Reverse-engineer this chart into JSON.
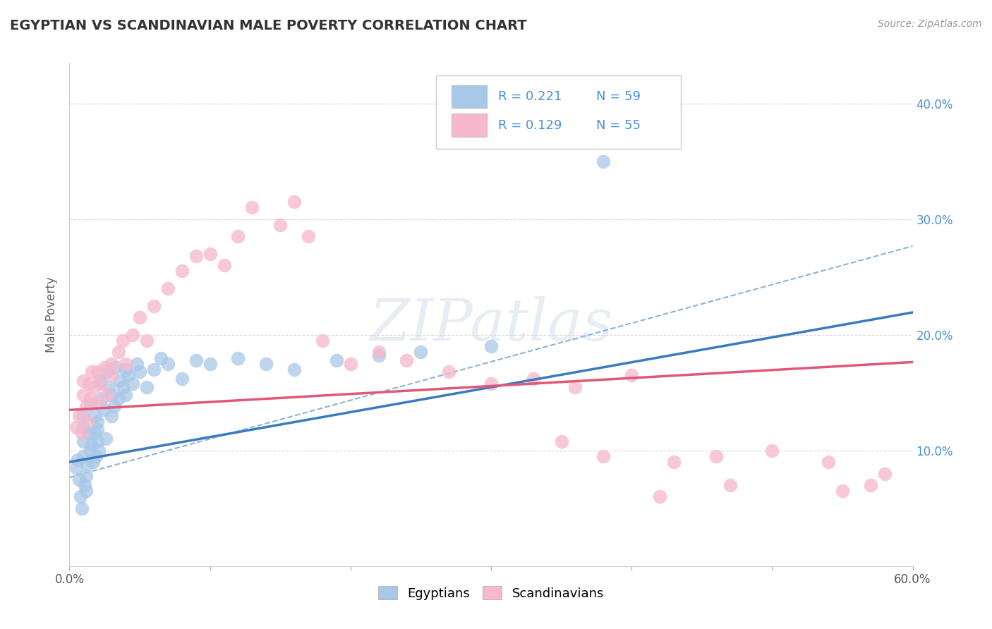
{
  "title": "EGYPTIAN VS SCANDINAVIAN MALE POVERTY CORRELATION CHART",
  "source": "Source: ZipAtlas.com",
  "ylabel": "Male Poverty",
  "right_yticks": [
    "10.0%",
    "20.0%",
    "30.0%",
    "40.0%"
  ],
  "right_ytick_vals": [
    0.1,
    0.2,
    0.3,
    0.4
  ],
  "xlim": [
    0.0,
    0.6
  ],
  "ylim": [
    0.0,
    0.435
  ],
  "egyptian_R": 0.221,
  "egyptian_N": 59,
  "scandinavian_R": 0.129,
  "scandinavian_N": 55,
  "egyptian_color": "#a8c8e8",
  "scandinavian_color": "#f5b8cc",
  "trend_egyptian_color": "#3a7abf",
  "trend_scandinavian_color": "#e05878",
  "trend_dashed_color": "#8ab4d8",
  "legend_text_color": "#4a90d9",
  "background_color": "#ffffff",
  "grid_color": "#d8d8d8",
  "title_color": "#333333",
  "watermark": "ZIPatlas",
  "eg_x": [
    0.005,
    0.006,
    0.007,
    0.008,
    0.009,
    0.01,
    0.01,
    0.01,
    0.01,
    0.011,
    0.012,
    0.012,
    0.013,
    0.014,
    0.015,
    0.015,
    0.016,
    0.017,
    0.018,
    0.018,
    0.019,
    0.02,
    0.02,
    0.02,
    0.021,
    0.022,
    0.023,
    0.025,
    0.026,
    0.027,
    0.028,
    0.03,
    0.03,
    0.032,
    0.033,
    0.035,
    0.036,
    0.038,
    0.04,
    0.04,
    0.042,
    0.045,
    0.048,
    0.05,
    0.055,
    0.06,
    0.065,
    0.07,
    0.08,
    0.09,
    0.1,
    0.12,
    0.14,
    0.16,
    0.19,
    0.22,
    0.25,
    0.3,
    0.38
  ],
  "eg_y": [
    0.085,
    0.092,
    0.075,
    0.06,
    0.05,
    0.108,
    0.12,
    0.13,
    0.095,
    0.07,
    0.065,
    0.078,
    0.088,
    0.115,
    0.1,
    0.14,
    0.105,
    0.09,
    0.115,
    0.13,
    0.095,
    0.108,
    0.118,
    0.125,
    0.1,
    0.16,
    0.145,
    0.135,
    0.11,
    0.168,
    0.155,
    0.13,
    0.148,
    0.138,
    0.172,
    0.145,
    0.16,
    0.155,
    0.17,
    0.148,
    0.165,
    0.158,
    0.175,
    0.168,
    0.155,
    0.17,
    0.18,
    0.175,
    0.162,
    0.178,
    0.175,
    0.18,
    0.175,
    0.17,
    0.178,
    0.182,
    0.185,
    0.19,
    0.35
  ],
  "sc_x": [
    0.005,
    0.007,
    0.009,
    0.01,
    0.01,
    0.012,
    0.013,
    0.014,
    0.015,
    0.016,
    0.018,
    0.02,
    0.02,
    0.022,
    0.025,
    0.027,
    0.03,
    0.03,
    0.035,
    0.038,
    0.04,
    0.045,
    0.05,
    0.055,
    0.06,
    0.07,
    0.08,
    0.09,
    0.1,
    0.11,
    0.12,
    0.13,
    0.15,
    0.16,
    0.17,
    0.18,
    0.2,
    0.22,
    0.24,
    0.27,
    0.3,
    0.33,
    0.36,
    0.4,
    0.43,
    0.46,
    0.5,
    0.54,
    0.57,
    0.58,
    0.35,
    0.38,
    0.42,
    0.47,
    0.55
  ],
  "sc_y": [
    0.12,
    0.13,
    0.115,
    0.148,
    0.16,
    0.138,
    0.125,
    0.158,
    0.145,
    0.168,
    0.155,
    0.142,
    0.168,
    0.158,
    0.172,
    0.148,
    0.165,
    0.175,
    0.185,
    0.195,
    0.175,
    0.2,
    0.215,
    0.195,
    0.225,
    0.24,
    0.255,
    0.268,
    0.27,
    0.26,
    0.285,
    0.31,
    0.295,
    0.315,
    0.285,
    0.195,
    0.175,
    0.185,
    0.178,
    0.168,
    0.158,
    0.162,
    0.155,
    0.165,
    0.09,
    0.095,
    0.1,
    0.09,
    0.07,
    0.08,
    0.108,
    0.095,
    0.06,
    0.07,
    0.065
  ]
}
